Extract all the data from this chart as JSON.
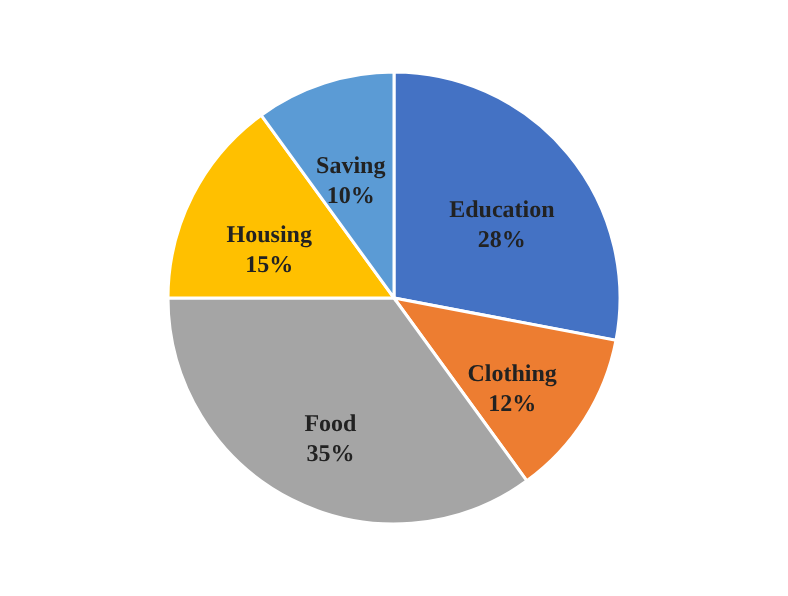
{
  "chart_data": {
    "type": "pie",
    "categories": [
      "Education",
      "Clothing",
      "Food",
      "Housing",
      "Saving"
    ],
    "values": [
      28,
      12,
      35,
      15,
      10
    ],
    "value_labels": [
      "28%",
      "12%",
      "35%",
      "15%",
      "10%"
    ],
    "colors": [
      "#4472c4",
      "#ed7d31",
      "#a5a5a5",
      "#ffc000",
      "#5b9bd5"
    ]
  }
}
